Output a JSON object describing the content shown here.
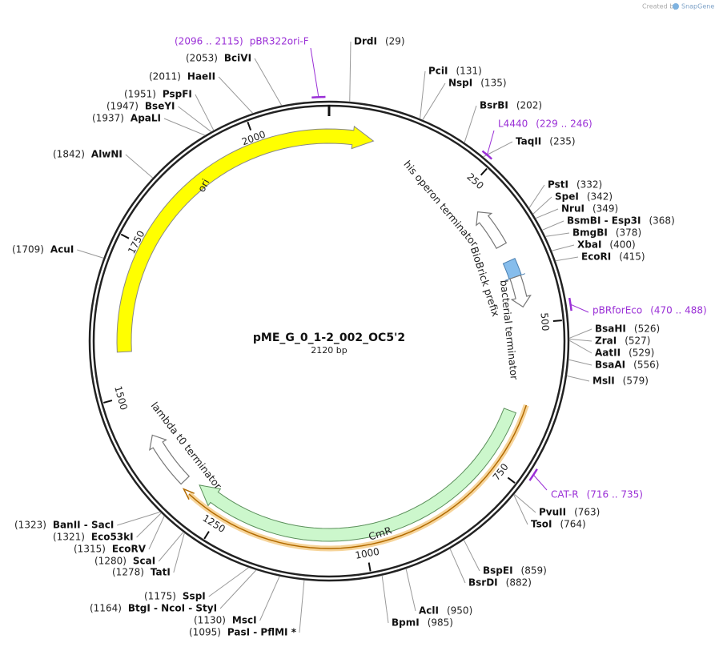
{
  "title": "pME_G_0_1-2_002_OC5'2",
  "length": "2120 bp",
  "credit": {
    "prefix": "Created by",
    "brand": "SnapGene"
  },
  "ticks": [
    250,
    500,
    750,
    1000,
    1250,
    1500,
    1750,
    2000
  ],
  "enzymes": [
    {
      "name": "DrdI",
      "position": "(29)"
    },
    {
      "name": "PciI",
      "position": "(131)"
    },
    {
      "name": "NspI",
      "position": "(135)"
    },
    {
      "name": "BsrBI",
      "position": "(202)"
    },
    {
      "name": "TaqII",
      "position": "(235)"
    },
    {
      "name": "PstI",
      "position": "(332)"
    },
    {
      "name": "SpeI",
      "position": "(342)"
    },
    {
      "name": "NruI",
      "position": "(349)"
    },
    {
      "name": "BsmBI - Esp3I",
      "position": "(368)"
    },
    {
      "name": "BmgBI",
      "position": "(378)"
    },
    {
      "name": "XbaI",
      "position": "(400)"
    },
    {
      "name": "EcoRI",
      "position": "(415)"
    },
    {
      "name": "BsaHI",
      "position": "(526)"
    },
    {
      "name": "ZraI",
      "position": "(527)"
    },
    {
      "name": "AatII",
      "position": "(529)"
    },
    {
      "name": "BsaAI",
      "position": "(556)"
    },
    {
      "name": "MslI",
      "position": "(579)"
    },
    {
      "name": "PvuII",
      "position": "(763)"
    },
    {
      "name": "TsoI",
      "position": "(764)"
    },
    {
      "name": "BspEI",
      "position": "(859)"
    },
    {
      "name": "BsrDI",
      "position": "(882)"
    },
    {
      "name": "AclI",
      "position": "(950)"
    },
    {
      "name": "BpmI",
      "position": "(985)"
    },
    {
      "name": "BciVI",
      "position": "(2053)"
    },
    {
      "name": "HaeII",
      "position": "(2011)"
    },
    {
      "name": "PspFI",
      "position": "(1951)"
    },
    {
      "name": "BseYI",
      "position": "(1947)"
    },
    {
      "name": "ApaLI",
      "position": "(1937)"
    },
    {
      "name": "AlwNI",
      "position": "(1842)"
    },
    {
      "name": "AcuI",
      "position": "(1709)"
    },
    {
      "name": "BanII - SacI",
      "position": "(1323)"
    },
    {
      "name": "Eco53kI",
      "position": "(1321)"
    },
    {
      "name": "EcoRV",
      "position": "(1315)"
    },
    {
      "name": "ScaI",
      "position": "(1280)"
    },
    {
      "name": "TatI",
      "position": "(1278)"
    },
    {
      "name": "SspI",
      "position": "(1175)"
    },
    {
      "name": "BtgI - NcoI - StyI",
      "position": "(1164)"
    },
    {
      "name": "MscI",
      "position": "(1130)"
    },
    {
      "name": "PasI - PflMI *",
      "position": "(1095)"
    }
  ],
  "primers": [
    {
      "name": "pBR322ori-F",
      "range": "(2096 .. 2115)"
    },
    {
      "name": "L4440",
      "range": "(229 .. 246)"
    },
    {
      "name": "pBRforEco",
      "range": "(470 .. 488)"
    },
    {
      "name": "CAT-R",
      "range": "(716 .. 735)"
    }
  ],
  "features": [
    "ori",
    "his operon terminator",
    "BioBrick prefix",
    "bacterial terminator",
    "CmR",
    "lambda t0 terminator"
  ]
}
